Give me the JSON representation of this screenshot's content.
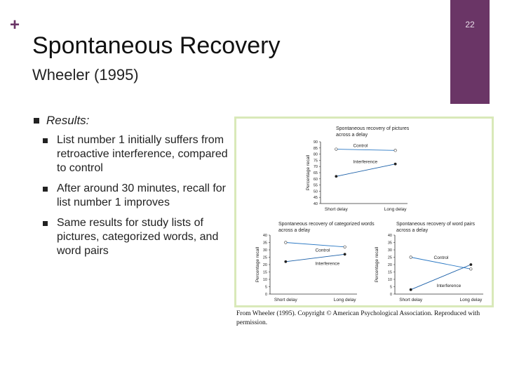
{
  "slide": {
    "plus": "+",
    "title": "Spontaneous Recovery",
    "subtitle": "Wheeler (1995)",
    "page_number": "22",
    "accent_color": "#6a3566"
  },
  "bullets": {
    "main": "Results:",
    "main_suffix": ":",
    "items": [
      "List number 1 initially suffers from retroactive interference, compared to control",
      "After around 30 minutes, recall for list number 1 improves",
      "Same results for study lists of pictures, categorized words, and word pairs"
    ]
  },
  "figure": {
    "caption": "From Wheeler (1995). Copyright © American Psychological Association. Reproduced with permission."
  },
  "chart_data": [
    {
      "type": "line",
      "title": "Spontaneous recovery of pictures across a delay",
      "ylabel": "Percentage recall",
      "categories": [
        "Short delay",
        "Long delay"
      ],
      "ylim": [
        40,
        90
      ],
      "yticks": [
        "40",
        "45",
        "50",
        "55",
        "60",
        "65",
        "70",
        "75",
        "80",
        "85",
        "90"
      ],
      "series": [
        {
          "name": "Control",
          "values": [
            84,
            83
          ]
        },
        {
          "name": "Interference",
          "values": [
            62,
            72
          ]
        }
      ]
    },
    {
      "type": "line",
      "title": "Spontaneous recovery of categorized words across a delay",
      "ylabel": "Percentage recall",
      "categories": [
        "Short delay",
        "Long delay"
      ],
      "ylim": [
        0,
        40
      ],
      "yticks": [
        "0",
        "5",
        "10",
        "15",
        "20",
        "25",
        "30",
        "35",
        "40"
      ],
      "series": [
        {
          "name": "Control",
          "values": [
            35,
            32
          ]
        },
        {
          "name": "Interference",
          "values": [
            22,
            27
          ]
        }
      ]
    },
    {
      "type": "line",
      "title": "Spontaneous recovery of word pairs across a delay",
      "ylabel": "Percentage recall",
      "categories": [
        "Short delay",
        "Long delay"
      ],
      "ylim": [
        0,
        40
      ],
      "yticks": [
        "0",
        "5",
        "10",
        "15",
        "20",
        "25",
        "30",
        "35",
        "40"
      ],
      "series": [
        {
          "name": "Control",
          "values": [
            25,
            17
          ]
        },
        {
          "name": "Interference",
          "values": [
            3,
            20
          ]
        }
      ]
    }
  ]
}
